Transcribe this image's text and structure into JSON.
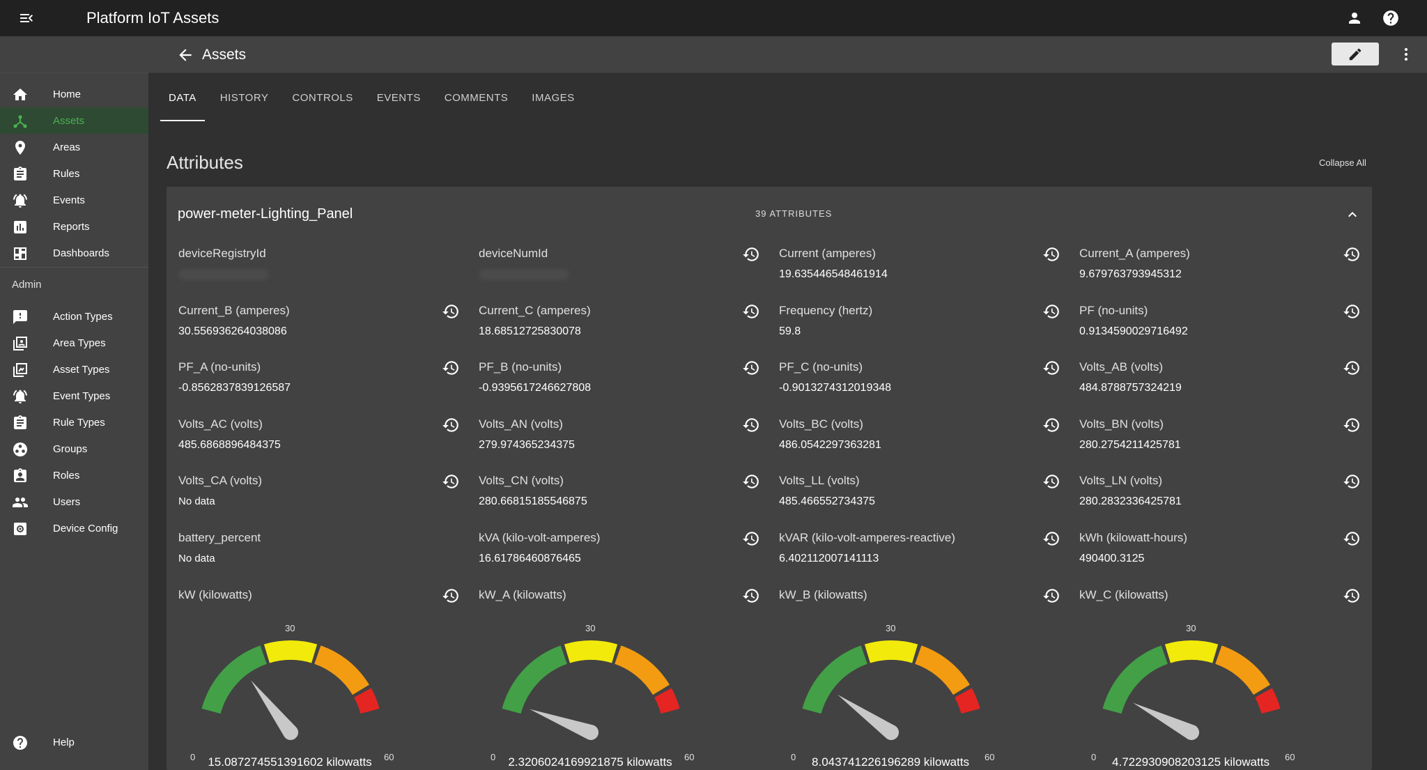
{
  "app": {
    "title": "Platform IoT Assets"
  },
  "sidebar": {
    "items": [
      {
        "label": "Home",
        "icon": "home-icon"
      },
      {
        "label": "Assets",
        "icon": "assets-icon",
        "active": true
      },
      {
        "label": "Areas",
        "icon": "location-pin-icon"
      },
      {
        "label": "Rules",
        "icon": "clipboard-icon"
      },
      {
        "label": "Events",
        "icon": "bell-alert-icon"
      },
      {
        "label": "Reports",
        "icon": "bar-chart-icon"
      },
      {
        "label": "Dashboards",
        "icon": "dashboard-icon"
      }
    ],
    "admin_label": "Admin",
    "admin_items": [
      {
        "label": "Action Types",
        "icon": "alert-box-icon"
      },
      {
        "label": "Area Types",
        "icon": "area-types-icon"
      },
      {
        "label": "Asset Types",
        "icon": "asset-types-icon"
      },
      {
        "label": "Event Types",
        "icon": "event-types-icon"
      },
      {
        "label": "Rule Types",
        "icon": "rule-types-icon"
      },
      {
        "label": "Groups",
        "icon": "groups-icon"
      },
      {
        "label": "Roles",
        "icon": "roles-icon"
      },
      {
        "label": "Users",
        "icon": "users-icon"
      },
      {
        "label": "Device Config",
        "icon": "device-config-icon"
      }
    ],
    "help_label": "Help"
  },
  "header": {
    "title": "Assets"
  },
  "tabs": [
    "DATA",
    "HISTORY",
    "CONTROLS",
    "EVENTS",
    "COMMENTS",
    "IMAGES"
  ],
  "attributes": {
    "section_title": "Attributes",
    "collapse_all": "Collapse All",
    "card_title": "power-meter-Lighting_Panel",
    "count_label": "39 ATTRIBUTES",
    "no_data": "No data",
    "items": [
      {
        "name": "deviceRegistryId",
        "value": null,
        "redacted": true,
        "history": false
      },
      {
        "name": "deviceNumId",
        "value": null,
        "redacted": true,
        "history": true
      },
      {
        "name": "Current (amperes)",
        "value": "19.635446548461914",
        "history": true
      },
      {
        "name": "Current_A (amperes)",
        "value": "9.679763793945312",
        "history": true
      },
      {
        "name": "Current_B (amperes)",
        "value": "30.556936264038086",
        "history": true
      },
      {
        "name": "Current_C (amperes)",
        "value": "18.68512725830078",
        "history": true
      },
      {
        "name": "Frequency (hertz)",
        "value": "59.8",
        "history": true
      },
      {
        "name": "PF (no-units)",
        "value": "0.9134590029716492",
        "history": true
      },
      {
        "name": "PF_A (no-units)",
        "value": "-0.8562837839126587",
        "history": true
      },
      {
        "name": "PF_B (no-units)",
        "value": "-0.9395617246627808",
        "history": true
      },
      {
        "name": "PF_C (no-units)",
        "value": "-0.9013274312019348",
        "history": true
      },
      {
        "name": "Volts_AB (volts)",
        "value": "484.8788757324219",
        "history": true
      },
      {
        "name": "Volts_AC (volts)",
        "value": "485.6868896484375",
        "history": true
      },
      {
        "name": "Volts_AN (volts)",
        "value": "279.974365234375",
        "history": true
      },
      {
        "name": "Volts_BC (volts)",
        "value": "486.0542297363281",
        "history": true
      },
      {
        "name": "Volts_BN (volts)",
        "value": "280.2754211425781",
        "history": true
      },
      {
        "name": "Volts_CA (volts)",
        "value": "No data",
        "history": true
      },
      {
        "name": "Volts_CN (volts)",
        "value": "280.66815185546875",
        "history": true
      },
      {
        "name": "Volts_LL (volts)",
        "value": "485.466552734375",
        "history": true
      },
      {
        "name": "Volts_LN (volts)",
        "value": "280.2832336425781",
        "history": true
      },
      {
        "name": "battery_percent",
        "value": "No data",
        "history": false
      },
      {
        "name": "kVA (kilo-volt-amperes)",
        "value": "16.61786460876465",
        "history": true
      },
      {
        "name": "kVAR (kilo-volt-amperes-reactive)",
        "value": "6.402112007141113",
        "history": true
      },
      {
        "name": "kWh (kilowatt-hours)",
        "value": "490400.3125",
        "history": true
      }
    ],
    "gauges": [
      {
        "name": "kW (kilowatts)",
        "value": 15.087274551391602,
        "reading": "15.087274551391602 kilowatts",
        "min": "0",
        "mid": "30",
        "max": "60",
        "min_value": 0,
        "max_value": 60
      },
      {
        "name": "kW_A (kilowatts)",
        "value": 2.3206024169921875,
        "reading": "2.3206024169921875 kilowatts",
        "min": "0",
        "mid": "30",
        "max": "60",
        "min_value": 0,
        "max_value": 60
      },
      {
        "name": "kW_B (kilowatts)",
        "value": 8.043741226196289,
        "reading": "8.043741226196289 kilowatts",
        "min": "0",
        "mid": "30",
        "max": "60",
        "min_value": 0,
        "max_value": 60
      },
      {
        "name": "kW_C (kilowatts)",
        "value": 4.722930908203125,
        "reading": "4.722930908203125 kilowatts",
        "min": "0",
        "mid": "30",
        "max": "60",
        "min_value": 0,
        "max_value": 60
      }
    ],
    "gauge_colors": {
      "low": "#43a047",
      "mid": "#f2ea0a",
      "high": "#f39c12",
      "max": "#e52521",
      "needle": "#c8c8c8"
    }
  },
  "colors": {
    "active_nav": "#4caf50",
    "topbar": "#212121",
    "sidebar": "#424242",
    "background": "#303030",
    "card": "#424242"
  }
}
